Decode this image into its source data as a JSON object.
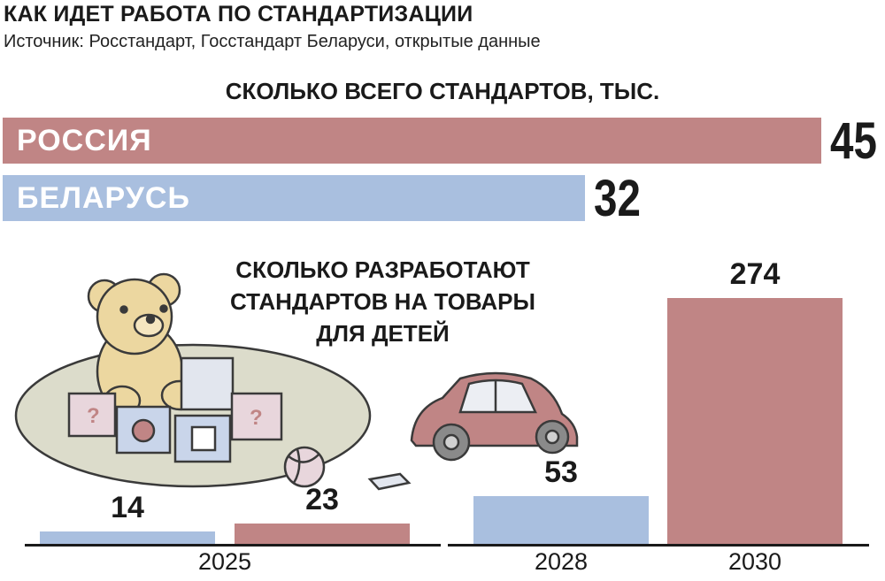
{
  "header": {
    "title": "КАК ИДЕТ РАБОТА ПО СТАНДАРТИЗАЦИИ",
    "source": "Источник: Росстандарт, Госстандарт Беларуси, открытые данные"
  },
  "colors": {
    "russia": "#c08585",
    "belarus": "#a9bfdf",
    "text": "#1a1a1a"
  },
  "chart_data": [
    {
      "type": "bar",
      "orientation": "horizontal",
      "title": "СКОЛЬКО ВСЕГО СТАНДАРТОВ, ТЫС.",
      "categories": [
        "РОССИЯ",
        "БЕЛАРУСЬ"
      ],
      "values": [
        45,
        32
      ],
      "colors": [
        "#c08585",
        "#a9bfdf"
      ]
    },
    {
      "type": "bar",
      "title": "СКОЛЬКО РАЗРАБОТАЮТ СТАНДАРТОВ НА ТОВАРЫ ДЛЯ ДЕТЕЙ",
      "categories": [
        "2025",
        "2028",
        "2030"
      ],
      "series": [
        {
          "values": [
            14,
            53,
            null
          ],
          "color": "#a9bfdf"
        },
        {
          "values": [
            23,
            null,
            274
          ],
          "color": "#c08585"
        }
      ]
    }
  ],
  "display": {
    "ru_value": "45",
    "by_value": "32",
    "v2025_blue": "14",
    "v2025_red": "23",
    "v2028_blue": "53",
    "v2030_red": "274"
  }
}
